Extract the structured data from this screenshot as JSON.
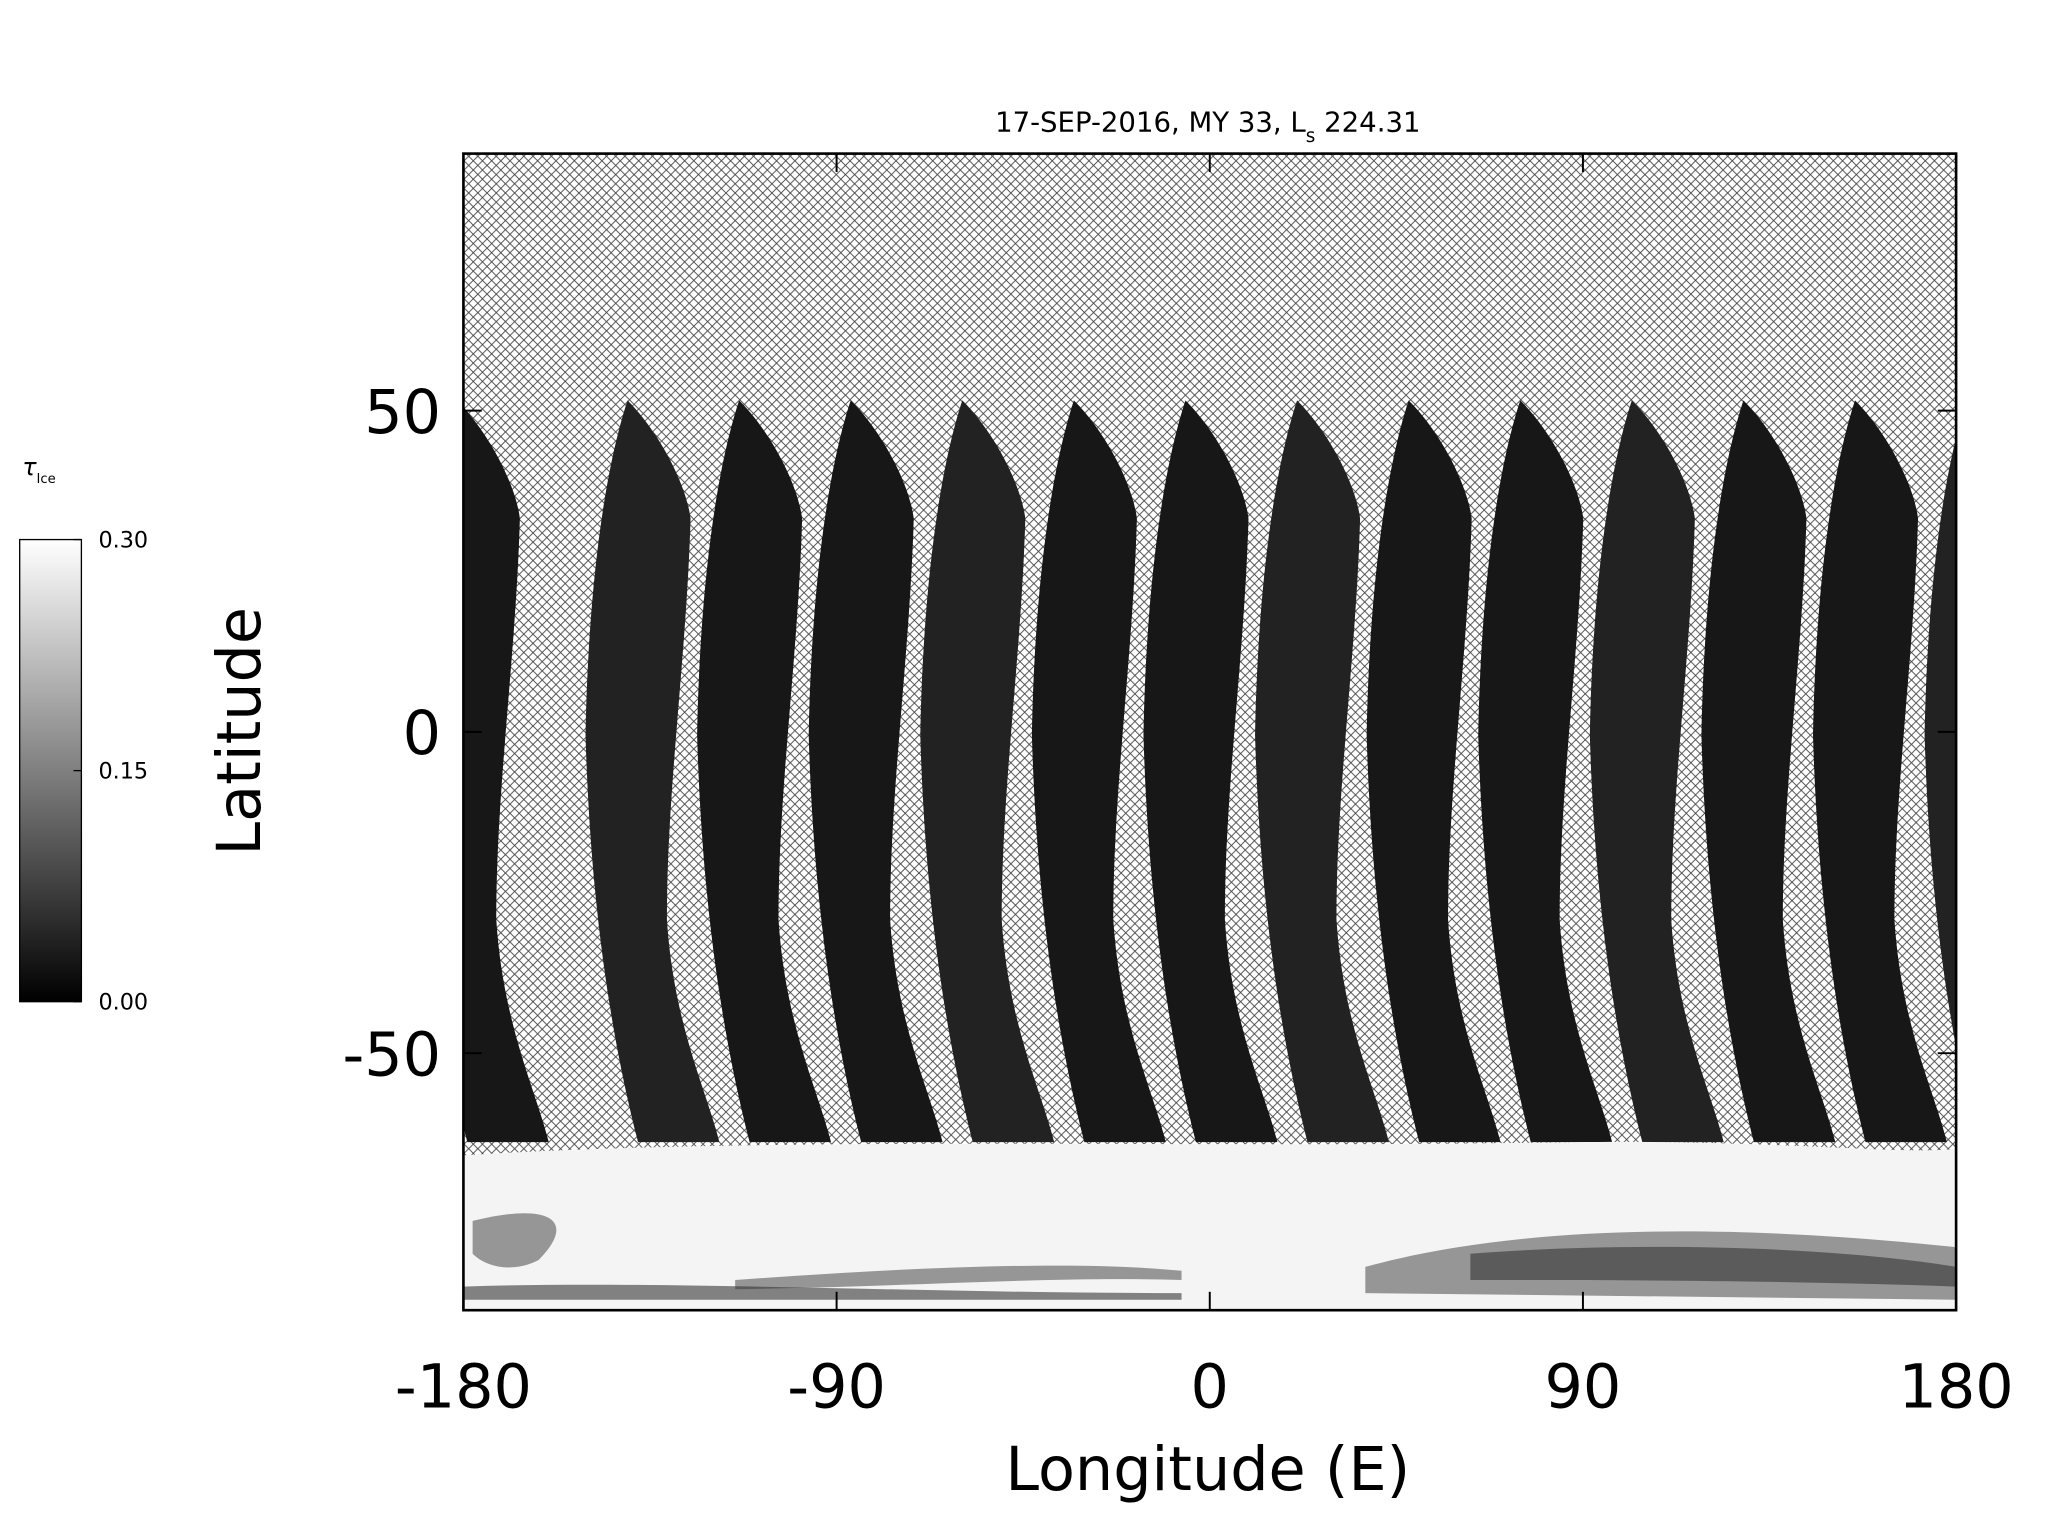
{
  "chart_data": {
    "type": "heatmap",
    "title_parts": [
      "17-SEP-2016, MY 33,  L",
      "s",
      " 224.31"
    ],
    "x_label": "Longitude (E)",
    "y_label": "Latitude",
    "xlim": [
      -180,
      180
    ],
    "xticks": [
      -180,
      -90,
      0,
      90,
      180
    ],
    "ylim": [
      -90,
      90
    ],
    "yticks": [
      -50,
      0,
      50
    ],
    "colorbar": {
      "label": "τ",
      "label_subscript": "Ice",
      "lim": [
        0,
        0.3
      ],
      "ticks": [
        {
          "value": 0,
          "label": "0.00"
        },
        {
          "value": 0.15,
          "label": "0.15"
        },
        {
          "value": 0.3,
          "label": "0.30"
        }
      ]
    }
  }
}
